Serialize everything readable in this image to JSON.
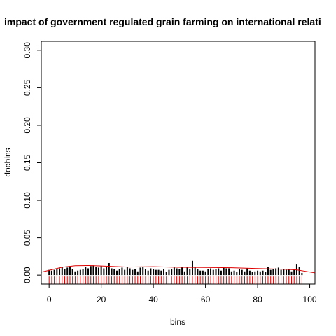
{
  "chart_data": {
    "type": "bar",
    "title": "impact of government regulated grain farming on international relati",
    "xlabel": "bins",
    "ylabel": "docbins",
    "xlim": [
      -3,
      102
    ],
    "ylim": [
      -0.012,
      0.312
    ],
    "xticks": [
      0,
      20,
      40,
      60,
      80,
      100
    ],
    "yticks": [
      0.0,
      0.05,
      0.1,
      0.15,
      0.2,
      0.25,
      0.3
    ],
    "ytick_labels": [
      "0.00",
      "0.05",
      "0.10",
      "0.15",
      "0.20",
      "0.25",
      "0.30"
    ],
    "grid": false,
    "x": [
      0,
      1,
      2,
      3,
      4,
      5,
      6,
      7,
      8,
      9,
      10,
      11,
      12,
      13,
      14,
      15,
      16,
      17,
      18,
      19,
      20,
      21,
      22,
      23,
      24,
      25,
      26,
      27,
      28,
      29,
      30,
      31,
      32,
      33,
      34,
      35,
      36,
      37,
      38,
      39,
      40,
      41,
      42,
      43,
      44,
      45,
      46,
      47,
      48,
      49,
      50,
      51,
      52,
      53,
      54,
      55,
      56,
      57,
      58,
      59,
      60,
      61,
      62,
      63,
      64,
      65,
      66,
      67,
      68,
      69,
      70,
      71,
      72,
      73,
      74,
      75,
      76,
      77,
      78,
      79,
      80,
      81,
      82,
      83,
      84,
      85,
      86,
      87,
      88,
      89,
      90,
      91,
      92,
      93,
      94,
      95,
      96,
      97
    ],
    "values": [
      0.007,
      0.006,
      0.007,
      0.008,
      0.009,
      0.011,
      0.008,
      0.01,
      0.012,
      0.008,
      0.005,
      0.006,
      0.007,
      0.008,
      0.011,
      0.009,
      0.012,
      0.013,
      0.011,
      0.01,
      0.012,
      0.009,
      0.011,
      0.016,
      0.009,
      0.008,
      0.006,
      0.008,
      0.01,
      0.007,
      0.011,
      0.009,
      0.007,
      0.008,
      0.005,
      0.01,
      0.011,
      0.008,
      0.006,
      0.009,
      0.008,
      0.007,
      0.007,
      0.006,
      0.008,
      0.004,
      0.007,
      0.008,
      0.01,
      0.009,
      0.008,
      0.011,
      0.005,
      0.01,
      0.008,
      0.019,
      0.011,
      0.008,
      0.006,
      0.006,
      0.005,
      0.008,
      0.009,
      0.007,
      0.008,
      0.009,
      0.006,
      0.01,
      0.009,
      0.009,
      0.005,
      0.006,
      0.004,
      0.008,
      0.007,
      0.005,
      0.009,
      0.006,
      0.004,
      0.005,
      0.006,
      0.005,
      0.006,
      0.004,
      0.011,
      0.007,
      0.008,
      0.009,
      0.01,
      0.007,
      0.008,
      0.007,
      0.008,
      0.005,
      0.007,
      0.015,
      0.011,
      0.003
    ],
    "density_curve": {
      "x": [
        -3,
        5,
        10,
        15,
        20,
        30,
        40,
        50,
        60,
        70,
        80,
        90,
        95,
        102
      ],
      "y": [
        0.004,
        0.0105,
        0.0125,
        0.0128,
        0.0122,
        0.0108,
        0.0112,
        0.0104,
        0.0102,
        0.0098,
        0.0088,
        0.0078,
        0.007,
        0.003
      ]
    },
    "rug": {
      "x": [
        0,
        1,
        2,
        3,
        4,
        5,
        6,
        7,
        8,
        9,
        10,
        11,
        12,
        13,
        14,
        15,
        16,
        17,
        18,
        19,
        20,
        21,
        22,
        23,
        24,
        25,
        26,
        27,
        28,
        29,
        30,
        31,
        32,
        33,
        34,
        35,
        36,
        37,
        38,
        39,
        40,
        41,
        42,
        43,
        44,
        45,
        46,
        47,
        48,
        49,
        50,
        51,
        52,
        53,
        54,
        55,
        56,
        57,
        58,
        59,
        60,
        61,
        62,
        63,
        64,
        65,
        66,
        67,
        68,
        69,
        70,
        71,
        72,
        73,
        74,
        75,
        76,
        77,
        78,
        79,
        80,
        81,
        82,
        83,
        84,
        85,
        86,
        87,
        88,
        89,
        90,
        91,
        92,
        93,
        94,
        95,
        96,
        97
      ],
      "color": "#dd0000"
    },
    "colors": {
      "bar": "#000000",
      "curve": "#dd0000",
      "rug": "#dd0000",
      "frame": "#000000"
    }
  }
}
